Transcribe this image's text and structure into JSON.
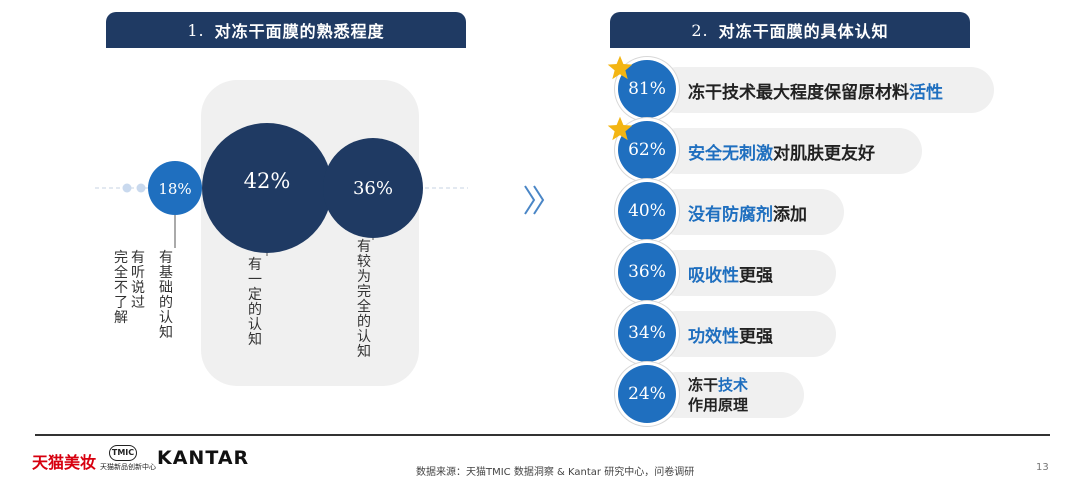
{
  "left_header": {
    "num": "1.",
    "title": "对冻干面膜的熟悉程度"
  },
  "right_header": {
    "num": "2.",
    "title": "对冻干面膜的具体认知"
  },
  "chart_data": [
    {
      "type": "bubble",
      "categories": [
        "完全不了解",
        "有听说过",
        "有基础的认知",
        "有一定的认知",
        "有较为完全的认知"
      ],
      "values": [
        null,
        null,
        18,
        42,
        36
      ],
      "value_labels": [
        "",
        "",
        "18%",
        "42%",
        "36%"
      ],
      "unit": "%"
    },
    {
      "type": "bar",
      "categories": [
        "冻干技术最大程度保留原材料活性",
        "安全无刺激对肌肤更友好",
        "没有防腐剂添加",
        "吸收性更强",
        "功效性更强",
        "冻干技术作用原理"
      ],
      "values": [
        81,
        62,
        40,
        36,
        34,
        24
      ],
      "value_labels": [
        "81%",
        "62%",
        "40%",
        "36%",
        "34%",
        "24%"
      ],
      "unit": "%"
    }
  ],
  "items": [
    {
      "value": "81%",
      "parts": [
        "冻干技术最大程度保留原材料",
        "活性"
      ],
      "starred": true
    },
    {
      "value": "62%",
      "parts": [
        "安全无刺激",
        "对肌肤更友好"
      ],
      "starred": true
    },
    {
      "value": "40%",
      "parts": [
        "没有防腐剂",
        "添加"
      ],
      "starred": false
    },
    {
      "value": "36%",
      "parts": [
        "吸收性",
        "更强"
      ],
      "starred": false
    },
    {
      "value": "34%",
      "parts": [
        "功效性",
        "更强"
      ],
      "starred": false
    },
    {
      "value": "24%",
      "line1": [
        "冻干",
        "技术"
      ],
      "line2": "作用原理",
      "starred": false
    }
  ],
  "footer": {
    "tmall_logo": "天猫美妆",
    "tmic_badge": "TMIC",
    "tmic_text": "天猫新品创新中心",
    "kantar_logo": "KANTAR",
    "source": "数据来源：天猫TMIC 数据洞察 & Kantar 研究中心，问卷调研",
    "page_number": "13"
  },
  "colors": {
    "header_navy": "#1f3a63",
    "bubble_navy": "#1f3a63",
    "bubble_blue": "#1f6fbf",
    "highlight_blue": "#1f6fbf",
    "star_gold": "#f3b513",
    "panel_gray": "#f0f0f0"
  },
  "icons": {
    "star": "star-icon",
    "arrow": "double-chevron-right-icon"
  }
}
